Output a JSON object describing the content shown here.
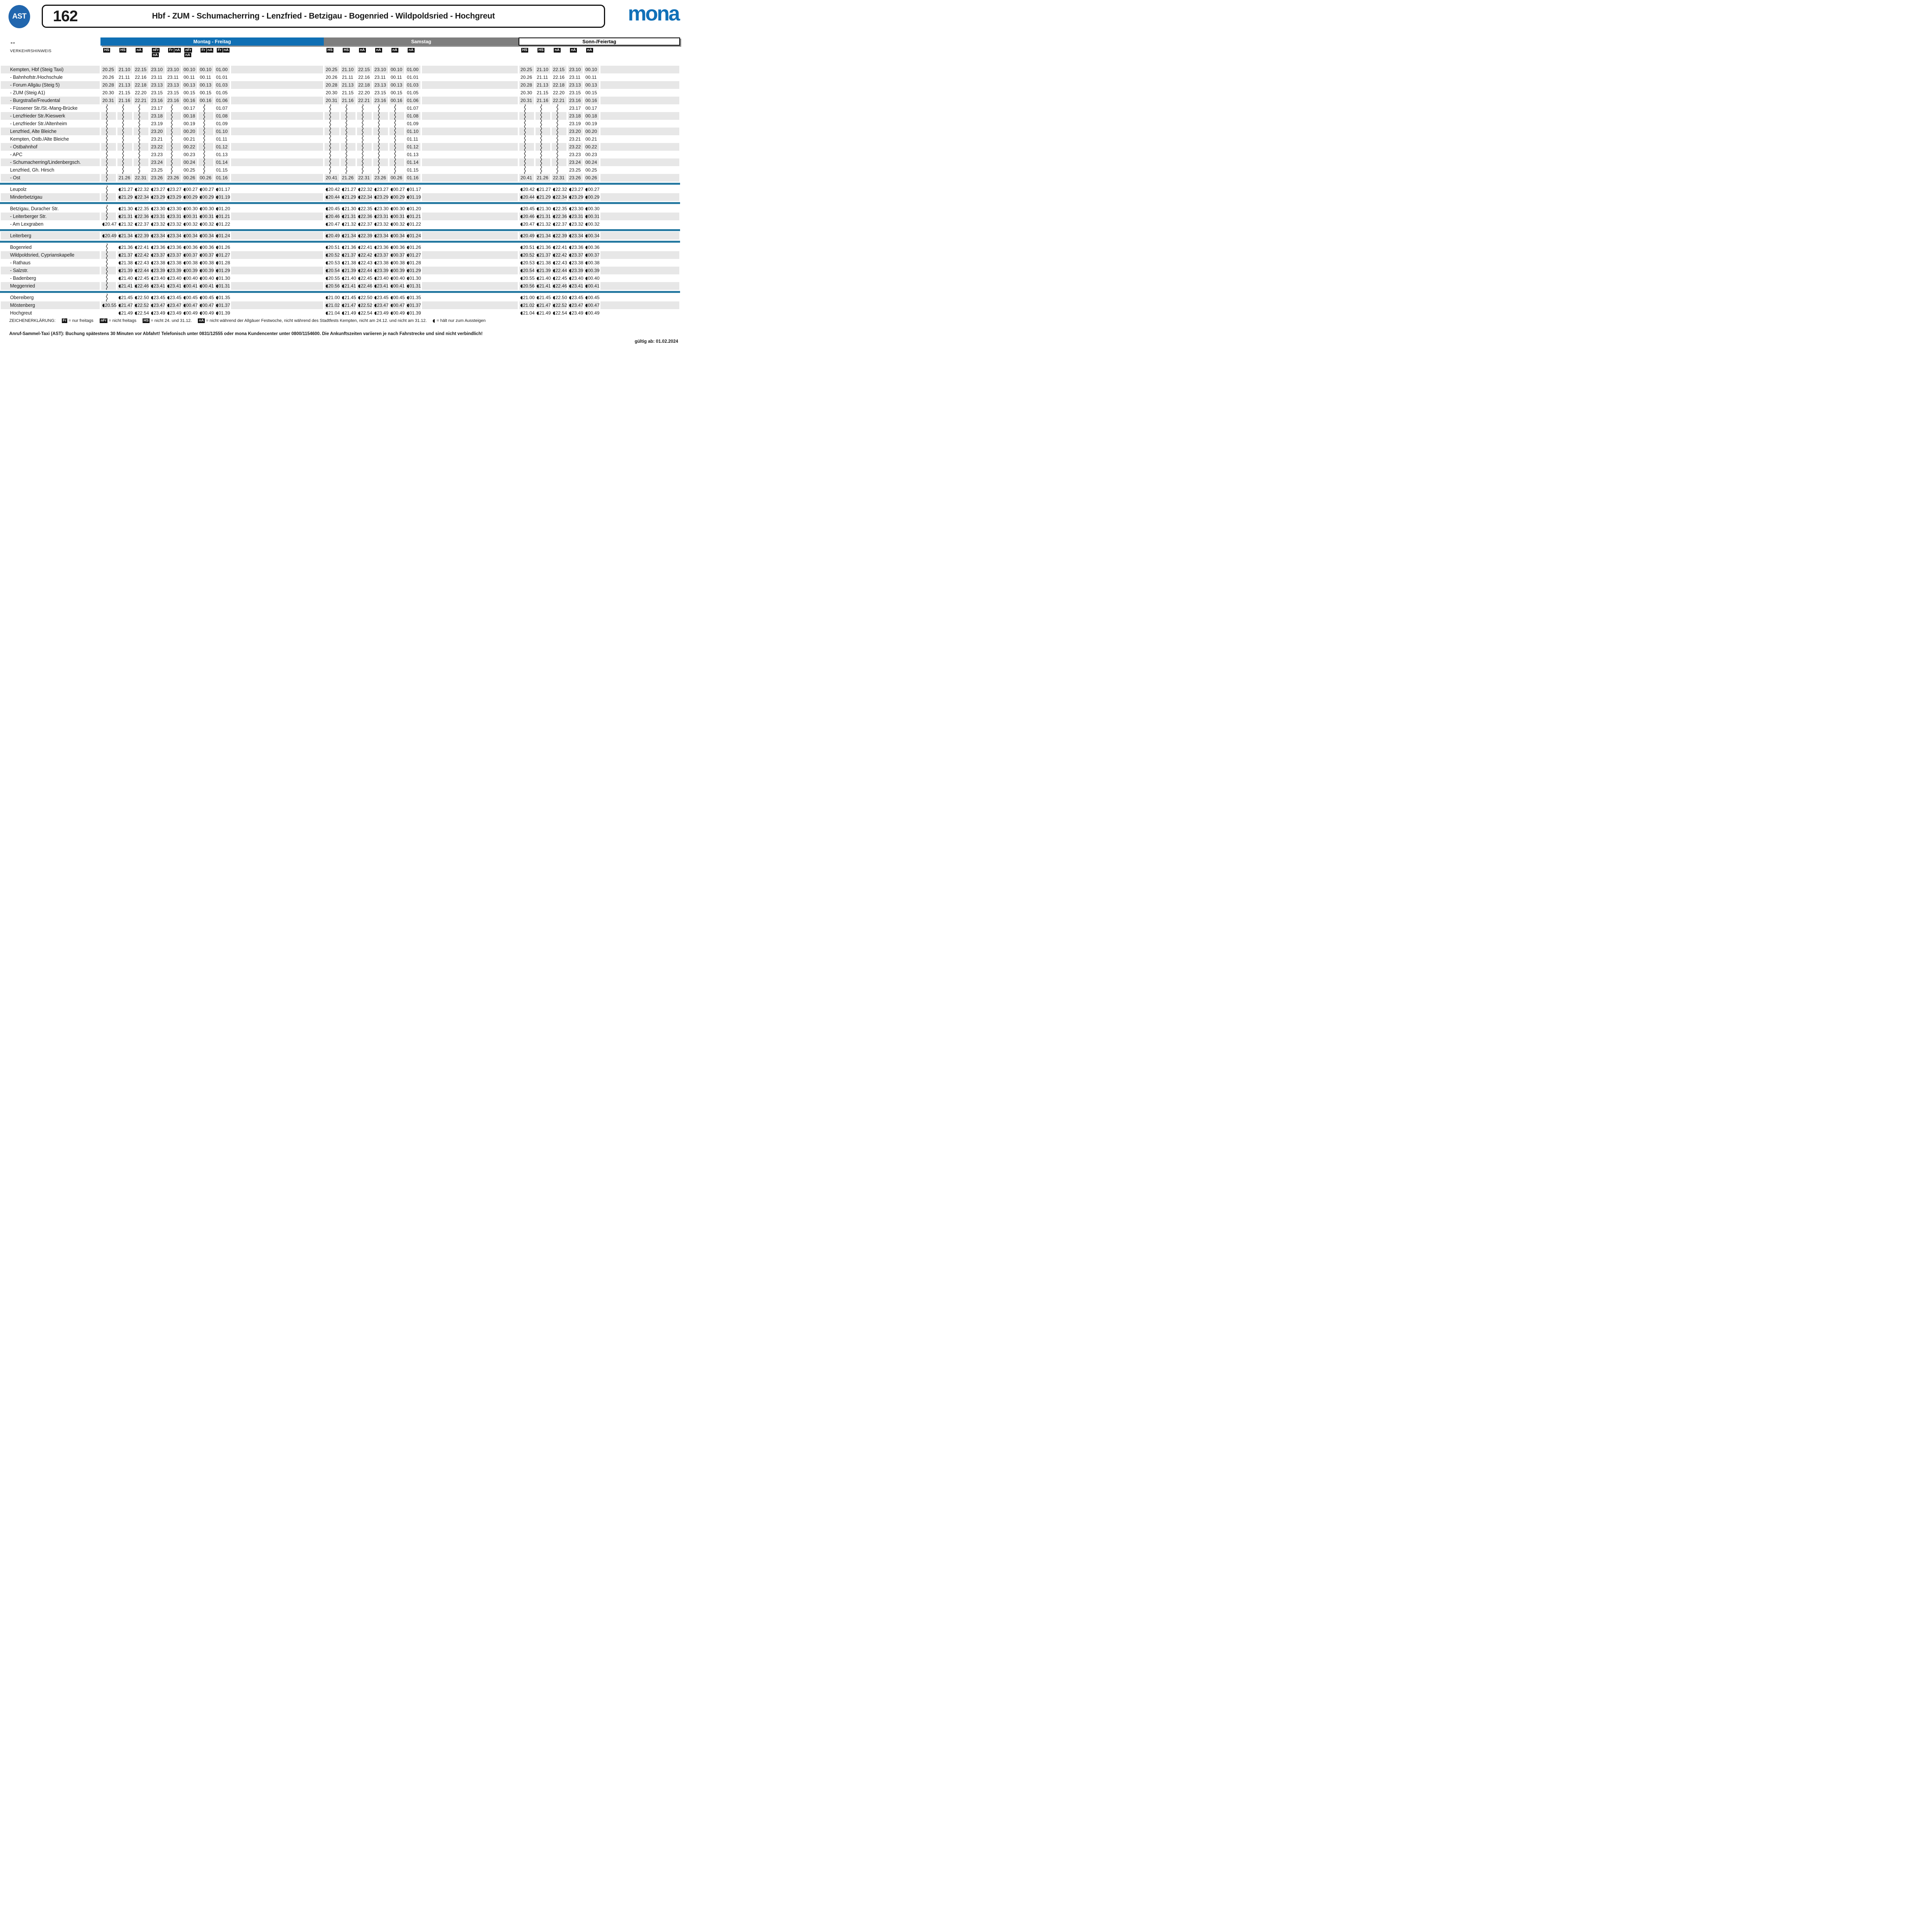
{
  "header": {
    "ast_badge": "AST",
    "line_number": "162",
    "route_title": "Hbf - ZUM - Schumacherring - Lenzfried - Betzigau - Bogenried - Wildpoldsried - Hochgreut",
    "brand": "mona"
  },
  "icons": {
    "bidirectional_arrow": "↔",
    "exit_only": "half-disc left-pointing, prefixed to times"
  },
  "colors": {
    "brand_blue": "#1070b8",
    "ast_blue": "#2166ae",
    "band_blue": "#0f6fb4",
    "band_gray": "#7e7e7e",
    "row_gray": "#e7e7e7",
    "separator_teal": "#2679a1",
    "chip_black": "#111111"
  },
  "hints_label": "VERKEHRSHINWEIS",
  "symbols": {
    "~": "wavy vertical line – trip passes stop without serving it",
    "*": "time shown with exit-only icon (hält nur zum Aussteigen)"
  },
  "day_groups": [
    {
      "label": "Montag - Freitag",
      "theme": "blue",
      "tags": [
        [
          [
            "HS"
          ]
        ],
        [
          [
            "HS"
          ]
        ],
        [
          [
            "nA"
          ]
        ],
        [
          [
            "nFr"
          ],
          [
            "nA"
          ]
        ],
        [
          [
            "Fr",
            "nA"
          ]
        ],
        [
          [
            "nFr"
          ],
          [
            "nA"
          ]
        ],
        [
          [
            "Fr",
            "nA"
          ]
        ],
        [
          [
            "Fr",
            "nA"
          ]
        ]
      ]
    },
    {
      "label": "Samstag",
      "theme": "gray",
      "tags": [
        [
          [
            "HS"
          ]
        ],
        [
          [
            "HS"
          ]
        ],
        [
          [
            "nA"
          ]
        ],
        [
          [
            "nA"
          ]
        ],
        [
          [
            "nA"
          ]
        ],
        [
          [
            "nA"
          ]
        ]
      ]
    },
    {
      "label": "Sonn-/Feiertag",
      "theme": "white",
      "tags": [
        [
          [
            "HS"
          ]
        ],
        [
          [
            "HS"
          ]
        ],
        [
          [
            "nA"
          ]
        ],
        [
          [
            "nA"
          ]
        ],
        [
          [
            "nA"
          ]
        ]
      ]
    }
  ],
  "rows": [
    {
      "stop": "Kempten, Hbf (Steig Taxi)",
      "mf": [
        "20.25",
        "21.10",
        "22.15",
        "23.10",
        "23.10",
        "00.10",
        "00.10",
        "01.00"
      ],
      "sa": [
        "20.25",
        "21.10",
        "22.15",
        "23.10",
        "00.10",
        "01.00"
      ],
      "so": [
        "20.25",
        "21.10",
        "22.15",
        "23.10",
        "00.10"
      ]
    },
    {
      "stop": "- Bahnhofstr./Hochschule",
      "mf": [
        "20.26",
        "21.11",
        "22.16",
        "23.11",
        "23.11",
        "00.11",
        "00.11",
        "01.01"
      ],
      "sa": [
        "20.26",
        "21.11",
        "22.16",
        "23.11",
        "00.11",
        "01.01"
      ],
      "so": [
        "20.26",
        "21.11",
        "22.16",
        "23.11",
        "00.11"
      ]
    },
    {
      "stop": "- Forum Allgäu (Steig 5)",
      "mf": [
        "20.28",
        "21.13",
        "22.18",
        "23.13",
        "23.13",
        "00.13",
        "00.13",
        "01.03"
      ],
      "sa": [
        "20.28",
        "21.13",
        "22.18",
        "23.13",
        "00.13",
        "01.03"
      ],
      "so": [
        "20.28",
        "21.13",
        "22.18",
        "23.13",
        "00.13"
      ]
    },
    {
      "stop": "- ZUM (Steig A1)",
      "mf": [
        "20.30",
        "21.15",
        "22.20",
        "23.15",
        "23.15",
        "00.15",
        "00.15",
        "01.05"
      ],
      "sa": [
        "20.30",
        "21.15",
        "22.20",
        "23.15",
        "00.15",
        "01.05"
      ],
      "so": [
        "20.30",
        "21.15",
        "22.20",
        "23.15",
        "00.15"
      ]
    },
    {
      "stop": "- Burgstraße/Freudental",
      "mf": [
        "20.31",
        "21.16",
        "22.21",
        "23.16",
        "23.16",
        "00.16",
        "00.16",
        "01.06"
      ],
      "sa": [
        "20.31",
        "21.16",
        "22.21",
        "23.16",
        "00.16",
        "01.06"
      ],
      "so": [
        "20.31",
        "21.16",
        "22.21",
        "23.16",
        "00.16"
      ]
    },
    {
      "stop": "- Füssener Str./St.-Mang-Brücke",
      "mf": [
        "~",
        "~",
        "~",
        "23.17",
        "~",
        "00.17",
        "~",
        "01.07"
      ],
      "sa": [
        "~",
        "~",
        "~",
        "~",
        "~",
        "01.07"
      ],
      "so": [
        "~",
        "~",
        "~",
        "23.17",
        "00.17"
      ]
    },
    {
      "stop": "- Lenzfrieder Str./Kieswerk",
      "mf": [
        "~",
        "~",
        "~",
        "23.18",
        "~",
        "00.18",
        "~",
        "01.08"
      ],
      "sa": [
        "~",
        "~",
        "~",
        "~",
        "~",
        "01.08"
      ],
      "so": [
        "~",
        "~",
        "~",
        "23.18",
        "00.18"
      ]
    },
    {
      "stop": "- Lenzfrieder Str./Altenheim",
      "mf": [
        "~",
        "~",
        "~",
        "23.19",
        "~",
        "00.19",
        "~",
        "01.09"
      ],
      "sa": [
        "~",
        "~",
        "~",
        "~",
        "~",
        "01.09"
      ],
      "so": [
        "~",
        "~",
        "~",
        "23.19",
        "00.19"
      ]
    },
    {
      "stop": "Lenzfried, Alte Bleiche",
      "mf": [
        "~",
        "~",
        "~",
        "23.20",
        "~",
        "00.20",
        "~",
        "01.10"
      ],
      "sa": [
        "~",
        "~",
        "~",
        "~",
        "~",
        "01.10"
      ],
      "so": [
        "~",
        "~",
        "~",
        "23.20",
        "00.20"
      ]
    },
    {
      "stop": "Kempten, Ostb./Alte Bleiche",
      "mf": [
        "~",
        "~",
        "~",
        "23.21",
        "~",
        "00.21",
        "~",
        "01.11"
      ],
      "sa": [
        "~",
        "~",
        "~",
        "~",
        "~",
        "01.11"
      ],
      "so": [
        "~",
        "~",
        "~",
        "23.21",
        "00.21"
      ]
    },
    {
      "stop": "- Ostbahnhof",
      "mf": [
        "~",
        "~",
        "~",
        "23.22",
        "~",
        "00.22",
        "~",
        "01.12"
      ],
      "sa": [
        "~",
        "~",
        "~",
        "~",
        "~",
        "01.12"
      ],
      "so": [
        "~",
        "~",
        "~",
        "23.22",
        "00.22"
      ]
    },
    {
      "stop": "- APC",
      "mf": [
        "~",
        "~",
        "~",
        "23.23",
        "~",
        "00.23",
        "~",
        "01.13"
      ],
      "sa": [
        "~",
        "~",
        "~",
        "~",
        "~",
        "01.13"
      ],
      "so": [
        "~",
        "~",
        "~",
        "23.23",
        "00.23"
      ]
    },
    {
      "stop": "- Schumacherring/Lindenbergsch.",
      "mf": [
        "~",
        "~",
        "~",
        "23.24",
        "~",
        "00.24",
        "~",
        "01.14"
      ],
      "sa": [
        "~",
        "~",
        "~",
        "~",
        "~",
        "01.14"
      ],
      "so": [
        "~",
        "~",
        "~",
        "23.24",
        "00.24"
      ]
    },
    {
      "stop": "Lenzfried, Gh. Hirsch",
      "mf": [
        "~",
        "~",
        "~",
        "23.25",
        "~",
        "00.25",
        "~",
        "01.15"
      ],
      "sa": [
        "~",
        "~",
        "~",
        "~",
        "~",
        "01.15"
      ],
      "so": [
        "~",
        "~",
        "~",
        "23.25",
        "00.25"
      ]
    },
    {
      "stop": "- Ost",
      "mf": [
        "~",
        "21.26",
        "22.31",
        "23.26",
        "23.26",
        "00.26",
        "00.26",
        "01.16"
      ],
      "sa": [
        "20.41",
        "21.26",
        "22.31",
        "23.26",
        "00.26",
        "01.16"
      ],
      "so": [
        "20.41",
        "21.26",
        "22.31",
        "23.26",
        "00.26"
      ]
    },
    {
      "separator": true
    },
    {
      "stop": "Leupolz",
      "mf": [
        "~",
        "*21.27",
        "*22.32",
        "*23.27",
        "*23.27",
        "*00.27",
        "*00.27",
        "*01.17"
      ],
      "sa": [
        "*20.42",
        "*21.27",
        "*22.32",
        "*23.27",
        "*00.27",
        "*01.17"
      ],
      "so": [
        "*20.42",
        "*21.27",
        "*22.32",
        "*23.27",
        "*00.27"
      ]
    },
    {
      "stop": "Minderbetzigau",
      "mf": [
        "~",
        "*21.29",
        "*22.34",
        "*23.29",
        "*23.29",
        "*00.29",
        "*00.29",
        "*01.19"
      ],
      "sa": [
        "*20.44",
        "*21.29",
        "*22.34",
        "*23.29",
        "*00.29",
        "*01.19"
      ],
      "so": [
        "*20.44",
        "*21.29",
        "*22.34",
        "*23.29",
        "*00.29"
      ]
    },
    {
      "separator": true
    },
    {
      "stop": "Betzigau, Duracher Str.",
      "mf": [
        "~",
        "*21.30",
        "*22.35",
        "*23.30",
        "*23.30",
        "*00.30",
        "*00.30",
        "*01.20"
      ],
      "sa": [
        "*20.45",
        "*21.30",
        "*22.35",
        "*23.30",
        "*00.30",
        "*01.20"
      ],
      "so": [
        "*20.45",
        "*21.30",
        "*22.35",
        "*23.30",
        "*00.30"
      ]
    },
    {
      "stop": "- Leiterberger Str.",
      "mf": [
        "~",
        "*21.31",
        "*22.36",
        "*23.31",
        "*23.31",
        "*00.31",
        "*00.31",
        "*01.21"
      ],
      "sa": [
        "*20.46",
        "*21.31",
        "*22.36",
        "*23.31",
        "*00.31",
        "*01.21"
      ],
      "so": [
        "*20.46",
        "*21.31",
        "*22.36",
        "*23.31",
        "*00.31"
      ]
    },
    {
      "stop": "- Am Lexgraben",
      "mf": [
        "*20.47",
        "*21.32",
        "*22.37",
        "*23.32",
        "*23.32",
        "*00.32",
        "*00.32",
        "*01.22"
      ],
      "sa": [
        "*20.47",
        "*21.32",
        "*22.37",
        "*23.32",
        "*00.32",
        "*01.22"
      ],
      "so": [
        "*20.47",
        "*21.32",
        "*22.37",
        "*23.32",
        "*00.32"
      ]
    },
    {
      "separator": true
    },
    {
      "stop": "Leiterberg",
      "mf": [
        "*20.49",
        "*21.34",
        "*22.39",
        "*23.34",
        "*23.34",
        "*00.34",
        "*00.34",
        "*01.24"
      ],
      "sa": [
        "*20.49",
        "*21.34",
        "*22.39",
        "*23.34",
        "*00.34",
        "*01.24"
      ],
      "so": [
        "*20.49",
        "*21.34",
        "*22.39",
        "*23.34",
        "*00.34"
      ]
    },
    {
      "separator": true
    },
    {
      "stop": "Bogenried",
      "mf": [
        "~",
        "*21.36",
        "*22.41",
        "*23.36",
        "*23.36",
        "*00.36",
        "*00.36",
        "*01.26"
      ],
      "sa": [
        "*20.51",
        "*21.36",
        "*22.41",
        "*23.36",
        "*00.36",
        "*01.26"
      ],
      "so": [
        "*20.51",
        "*21.36",
        "*22.41",
        "*23.36",
        "*00.36"
      ]
    },
    {
      "stop": "Wildpoldsried, Cyprianskapelle",
      "mf": [
        "~",
        "*21.37",
        "*22.42",
        "*23.37",
        "*23.37",
        "*00.37",
        "*00.37",
        "*01.27"
      ],
      "sa": [
        "*20.52",
        "*21.37",
        "*22.42",
        "*23.37",
        "*00.37",
        "*01.27"
      ],
      "so": [
        "*20.52",
        "*21.37",
        "*22.42",
        "*23.37",
        "*00.37"
      ]
    },
    {
      "stop": "- Rathaus",
      "mf": [
        "~",
        "*21.38",
        "*22.43",
        "*23.38",
        "*23.38",
        "*00.38",
        "*00.38",
        "*01.28"
      ],
      "sa": [
        "*20.53",
        "*21.38",
        "*22.43",
        "*23.38",
        "*00.38",
        "*01.28"
      ],
      "so": [
        "*20.53",
        "*21.38",
        "*22.43",
        "*23.38",
        "*00.38"
      ]
    },
    {
      "stop": "- Salzstr.",
      "mf": [
        "~",
        "*21.39",
        "*22.44",
        "*23.39",
        "*23.39",
        "*00.39",
        "*00.39",
        "*01.29"
      ],
      "sa": [
        "*20.54",
        "*21.39",
        "*22.44",
        "*23.39",
        "*00.39",
        "*01.29"
      ],
      "so": [
        "*20.54",
        "*21.39",
        "*22.44",
        "*23.39",
        "*00.39"
      ]
    },
    {
      "stop": "- Badenberg",
      "mf": [
        "~",
        "*21.40",
        "*22.45",
        "*23.40",
        "*23.40",
        "*00.40",
        "*00.40",
        "*01.30"
      ],
      "sa": [
        "*20.55",
        "*21.40",
        "*22.45",
        "*23.40",
        "*00.40",
        "*01.30"
      ],
      "so": [
        "*20.55",
        "*21.40",
        "*22.45",
        "*23.40",
        "*00.40"
      ]
    },
    {
      "stop": "Meggenried",
      "mf": [
        "~",
        "*21.41",
        "*22.46",
        "*23.41",
        "*23.41",
        "*00.41",
        "*00.41",
        "*01.31"
      ],
      "sa": [
        "*20.56",
        "*21.41",
        "*22.46",
        "*23.41",
        "*00.41",
        "*01.31"
      ],
      "so": [
        "*20.56",
        "*21.41",
        "*22.46",
        "*23.41",
        "*00.41"
      ]
    },
    {
      "separator": true
    },
    {
      "stop": "Obereiberg",
      "mf": [
        "~",
        "*21.45",
        "*22.50",
        "*23.45",
        "*23.45",
        "*00.45",
        "*00.45",
        "*01.35"
      ],
      "sa": [
        "*21.00",
        "*21.45",
        "*22.50",
        "*23.45",
        "*00.45",
        "*01.35"
      ],
      "so": [
        "*21.00",
        "*21.45",
        "*22.50",
        "*23.45",
        "*00.45"
      ]
    },
    {
      "stop": "Möstenberg",
      "mf": [
        "*20.55",
        "*21.47",
        "*22.52",
        "*23.47",
        "*23.47",
        "*00.47",
        "*00.47",
        "*01.37"
      ],
      "sa": [
        "*21.02",
        "*21.47",
        "*22.52",
        "*23.47",
        "*00.47",
        "*01.37"
      ],
      "so": [
        "*21.02",
        "*21.47",
        "*22.52",
        "*23.47",
        "*00.47"
      ]
    },
    {
      "stop": "Hochgreut",
      "mf": [
        "",
        "*21.49",
        "*22.54",
        "*23.49",
        "*23.49",
        "*00.49",
        "*00.49",
        "*01.39"
      ],
      "sa": [
        "*21.04",
        "*21.49",
        "*22.54",
        "*23.49",
        "*00.49",
        "*01.39"
      ],
      "so": [
        "*21.04",
        "*21.49",
        "*22.54",
        "*23.49",
        "*00.49"
      ]
    }
  ],
  "legend": {
    "heading": "ZEICHENERKLÄRUNG:",
    "items": [
      {
        "chips": [
          "Fr"
        ],
        "text": "= nur freitags"
      },
      {
        "chips": [
          "nFr"
        ],
        "text": "= nicht freitags"
      },
      {
        "chips": [
          "HS"
        ],
        "text": "= nicht 24. und 31.12."
      },
      {
        "chips": [
          "nA"
        ],
        "text": "= nicht während der Allgäuer Festwoche, nicht während des Stadtfests Kempten, nicht am 24.12. und nicht am 31.12."
      },
      {
        "icon": "exit-only",
        "text": "= hält nur zum Aussteigen"
      }
    ]
  },
  "footer": {
    "note": "Anruf-Sammel-Taxi (AST): Buchung spätestens 30 Minuten vor Abfahrt! Telefonisch unter 0831/12555 oder mona Kundencenter unter 0800/1154600. Die Ankunftszeiten variieren je nach Fahrstrecke und sind nicht verbindlich!",
    "valid_from": "gültig ab: 01.02.2024"
  }
}
